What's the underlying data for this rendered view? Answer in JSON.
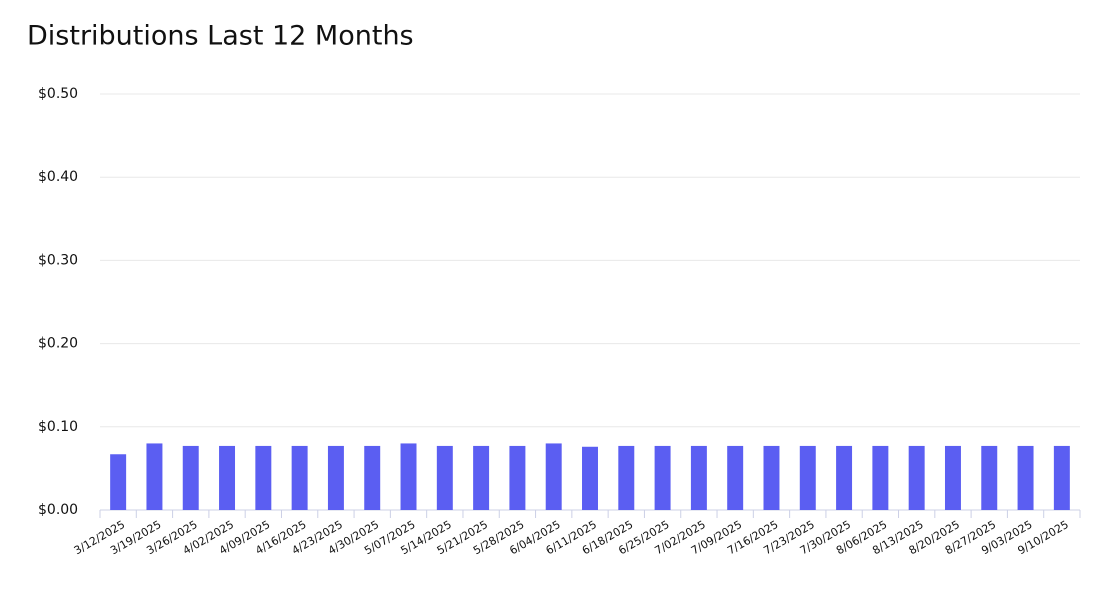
{
  "chart_data": {
    "type": "bar",
    "title": "Distributions Last 12 Months",
    "categories": [
      "3/12/2025",
      "3/19/2025",
      "3/26/2025",
      "4/02/2025",
      "4/09/2025",
      "4/16/2025",
      "4/23/2025",
      "4/30/2025",
      "5/07/2025",
      "5/14/2025",
      "5/21/2025",
      "5/28/2025",
      "6/04/2025",
      "6/11/2025",
      "6/18/2025",
      "6/25/2025",
      "7/02/2025",
      "7/09/2025",
      "7/16/2025",
      "7/23/2025",
      "7/30/2025",
      "8/06/2025",
      "8/13/2025",
      "8/20/2025",
      "8/27/2025",
      "9/03/2025",
      "9/10/2025"
    ],
    "values": [
      0.067,
      0.08,
      0.077,
      0.077,
      0.077,
      0.077,
      0.077,
      0.077,
      0.08,
      0.077,
      0.077,
      0.077,
      0.08,
      0.076,
      0.077,
      0.077,
      0.077,
      0.077,
      0.077,
      0.077,
      0.077,
      0.077,
      0.077,
      0.077,
      0.077,
      0.077,
      0.077
    ],
    "color": "#5b5ef2",
    "ylim": [
      0,
      0.5
    ],
    "yticks": [
      {
        "value": 0,
        "label": "$0.00"
      },
      {
        "value": 0.1,
        "label": "$0.10"
      },
      {
        "value": 0.2,
        "label": "$0.20"
      },
      {
        "value": 0.3,
        "label": "$0.30"
      },
      {
        "value": 0.4,
        "label": "$0.40"
      },
      {
        "value": 0.5,
        "label": "$0.50"
      }
    ],
    "grid": true
  }
}
